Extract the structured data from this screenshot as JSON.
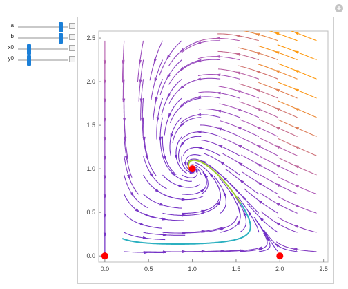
{
  "controls": [
    {
      "name": "a",
      "label": "a",
      "value": 0.9
    },
    {
      "name": "b",
      "label": "b",
      "value": 0.9
    },
    {
      "name": "x0",
      "label": "x0",
      "value": 0.2
    },
    {
      "name": "y0",
      "label": "y0",
      "value": 0.2
    }
  ],
  "panel": {
    "add_icon": "plus-circle-icon",
    "add_symbol": "+",
    "slider_plus_symbol": "+"
  },
  "chart_data": {
    "type": "stream plot",
    "x_ticks": [
      "0.0",
      "0.5",
      "1.0",
      "1.5",
      "2.0",
      "2.5"
    ],
    "y_ticks": [
      "0.0",
      "0.5",
      "1.0",
      "1.5",
      "2.0",
      "2.5"
    ],
    "xlim": [
      -0.07,
      2.55
    ],
    "ylim": [
      -0.07,
      2.58
    ],
    "grid": false,
    "legend": "none",
    "equilibrium_points": [
      [
        0,
        0
      ],
      [
        1,
        1
      ],
      [
        2,
        0
      ]
    ],
    "marker_color": "#ff0000",
    "stream_colors": {
      "low_speed": "#6a2dc9",
      "mid_speed": "#b05ab7",
      "high_speed": "#ff9a10"
    },
    "trajectory": {
      "start": [
        0.2,
        0.2
      ],
      "colors": [
        "#2bb0c0",
        "#9ccb2e",
        "#ff8a1a",
        "#c1272d"
      ]
    }
  }
}
